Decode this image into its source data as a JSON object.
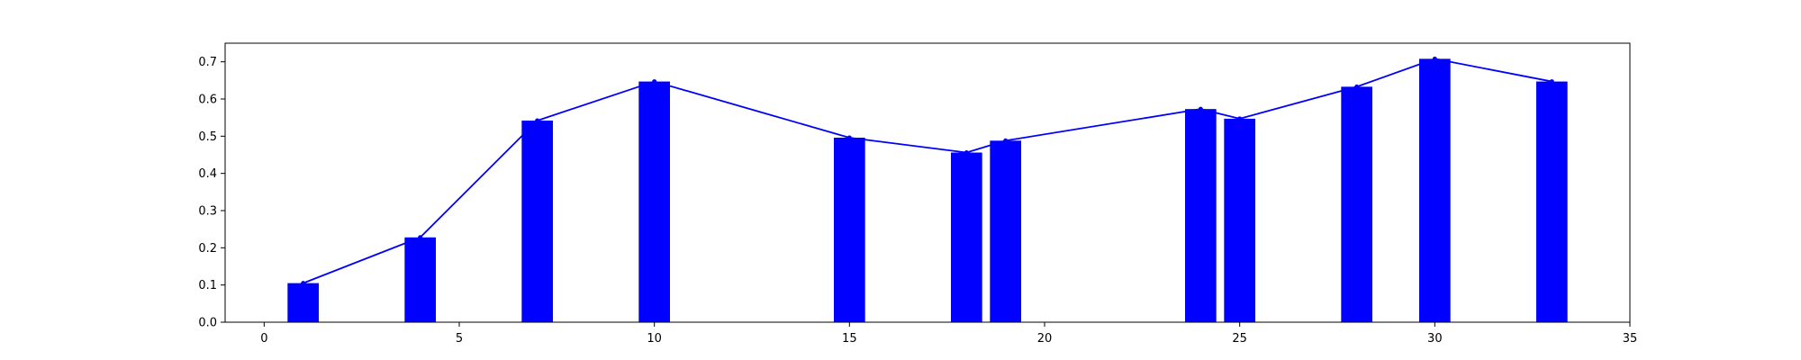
{
  "chart_data": {
    "type": "bar",
    "title": "",
    "xlabel": "",
    "ylabel": "",
    "xlim": [
      -1,
      35
    ],
    "ylim": [
      0,
      0.75
    ],
    "xticks": [
      0,
      5,
      10,
      15,
      20,
      25,
      30,
      35
    ],
    "yticks": [
      0.0,
      0.1,
      0.2,
      0.3,
      0.4,
      0.5,
      0.6,
      0.7
    ],
    "grid": false,
    "legend": "none",
    "colors": {
      "bar": "#0000ff",
      "line": "#0000ff",
      "axis": "#000000"
    },
    "x": [
      1,
      4,
      7,
      10,
      15,
      18,
      19,
      24,
      25,
      28,
      30,
      33
    ],
    "values": [
      0.105,
      0.228,
      0.542,
      0.647,
      0.496,
      0.456,
      0.488,
      0.573,
      0.547,
      0.633,
      0.708,
      0.647
    ],
    "bar_width": 0.8,
    "line_path": "tops"
  }
}
